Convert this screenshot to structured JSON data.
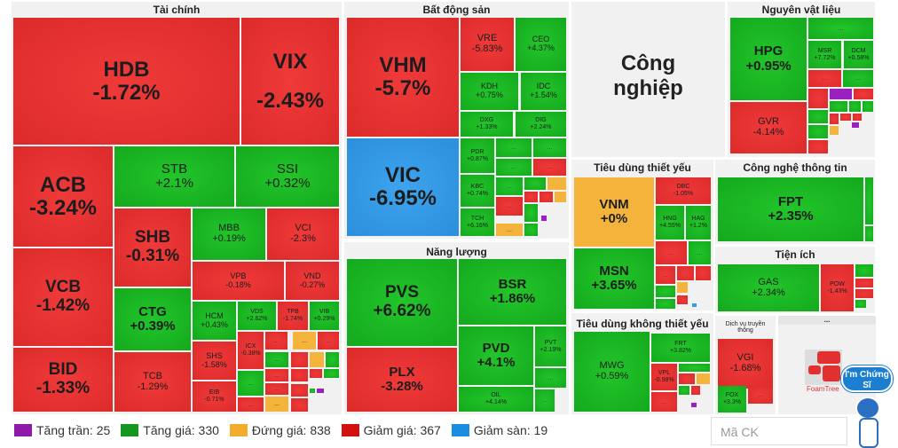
{
  "sectors": {
    "finance": "Tài chính",
    "realestate": "Bất động sản",
    "energy": "Năng lượng",
    "industry": "Công nghiệp",
    "staples": "Tiêu dùng thiết yếu",
    "discretionary": "Tiêu dùng không thiết yếu",
    "materials": "Nguyên vật liệu",
    "it": "Công nghệ thông tin",
    "utilities": "Tiện ích",
    "telecom": "Dịch vụ truyền thông",
    "other": "..."
  },
  "ellipsis": "...",
  "tiles": {
    "HDB": {
      "ticker": "HDB",
      "change": "-1.72%"
    },
    "VIX": {
      "ticker": "VIX",
      "change": "-2.43%"
    },
    "ACB": {
      "ticker": "ACB",
      "change": "-3.24%"
    },
    "STB": {
      "ticker": "STB",
      "change": "+2.1%"
    },
    "SSI": {
      "ticker": "SSI",
      "change": "+0.32%"
    },
    "SHB": {
      "ticker": "SHB",
      "change": "-0.31%"
    },
    "MBB": {
      "ticker": "MBB",
      "change": "+0.19%"
    },
    "VCI": {
      "ticker": "VCI",
      "change": "-2.3%"
    },
    "VCB": {
      "ticker": "VCB",
      "change": "-1.42%"
    },
    "VPB": {
      "ticker": "VPB",
      "change": "-0.18%"
    },
    "VND": {
      "ticker": "VND",
      "change": "-0.27%"
    },
    "CTG": {
      "ticker": "CTG",
      "change": "+0.39%"
    },
    "HCM": {
      "ticker": "HCM",
      "change": "+0.43%"
    },
    "VDS": {
      "ticker": "VDS",
      "change": "+2.62%"
    },
    "TPB": {
      "ticker": "TPB",
      "change": "-1.74%"
    },
    "VIB": {
      "ticker": "VIB",
      "change": "+0.29%"
    },
    "ICX": {
      "ticker": "ICX",
      "change": "-0.38%"
    },
    "SHS": {
      "ticker": "SHS",
      "change": "-1.58%"
    },
    "BID": {
      "ticker": "BID",
      "change": "-1.33%"
    },
    "TCB": {
      "ticker": "TCB",
      "change": "-1.29%"
    },
    "EIB": {
      "ticker": "EIB",
      "change": "-0.71%"
    },
    "VHM": {
      "ticker": "VHM",
      "change": "-5.7%"
    },
    "VRE": {
      "ticker": "VRE",
      "change": "-5.83%"
    },
    "CEO": {
      "ticker": "CEO",
      "change": "+4.37%"
    },
    "KDH": {
      "ticker": "KDH",
      "change": "+0.75%"
    },
    "IDC": {
      "ticker": "IDC",
      "change": "+1.54%"
    },
    "DXG": {
      "ticker": "DXG",
      "change": "+1.33%"
    },
    "DIG": {
      "ticker": "DIG",
      "change": "+2.24%"
    },
    "VIC": {
      "ticker": "VIC",
      "change": "-6.95%"
    },
    "PDR": {
      "ticker": "PDR",
      "change": "+0.87%"
    },
    "KBC": {
      "ticker": "KBC",
      "change": "+0.74%"
    },
    "TCH": {
      "ticker": "TCH",
      "change": "+6.16%"
    },
    "PVS": {
      "ticker": "PVS",
      "change": "+6.62%"
    },
    "PLX": {
      "ticker": "PLX",
      "change": "-3.28%"
    },
    "BSR": {
      "ticker": "BSR",
      "change": "+1.86%"
    },
    "PVD": {
      "ticker": "PVD",
      "change": "+4.1%"
    },
    "PVT": {
      "ticker": "PVT",
      "change": "+2.19%"
    },
    "OIL": {
      "ticker": "OIL",
      "change": "+4.14%"
    },
    "VNM": {
      "ticker": "VNM",
      "change": "+0%"
    },
    "DBC": {
      "ticker": "DBC",
      "change": "-1.05%"
    },
    "MSN": {
      "ticker": "MSN",
      "change": "+3.65%"
    },
    "HNG": {
      "ticker": "HNG",
      "change": "+4.55%"
    },
    "HAG": {
      "ticker": "HAG",
      "change": "+1.2%"
    },
    "MWG": {
      "ticker": "MWG",
      "change": "+0.59%"
    },
    "FRT": {
      "ticker": "FRT",
      "change": "+3.82%"
    },
    "VPL": {
      "ticker": "VPL",
      "change": "-0.98%"
    },
    "HPG": {
      "ticker": "HPG",
      "change": "+0.95%"
    },
    "GVR": {
      "ticker": "GVR",
      "change": "-4.14%"
    },
    "MSR": {
      "ticker": "MSR",
      "change": "+7.72%"
    },
    "DCM": {
      "ticker": "DCM",
      "change": "+0.58%"
    },
    "FPT": {
      "ticker": "FPT",
      "change": "+2.35%"
    },
    "GAS": {
      "ticker": "GAS",
      "change": "+2.34%"
    },
    "POW": {
      "ticker": "POW",
      "change": "-1.43%"
    },
    "VGI": {
      "ticker": "VGI",
      "change": "-1.68%"
    },
    "FOX": {
      "ticker": "FOX",
      "change": "+3.3%"
    }
  },
  "legend": [
    {
      "label": "Tăng trần: 25",
      "color": "#8e1aa8"
    },
    {
      "label": "Tăng giá: 330",
      "color": "#15961f"
    },
    {
      "label": "Đứng giá: 838",
      "color": "#f4ac2c"
    },
    {
      "label": "Giảm giá: 367",
      "color": "#d40f0f"
    },
    {
      "label": "Giảm sàn: 19",
      "color": "#1a8de0"
    }
  ],
  "search": {
    "placeholder": "Mã CK"
  },
  "badge": {
    "text": "I'm Chứng Sĩ"
  },
  "logo": {
    "text": "FoamTree"
  }
}
